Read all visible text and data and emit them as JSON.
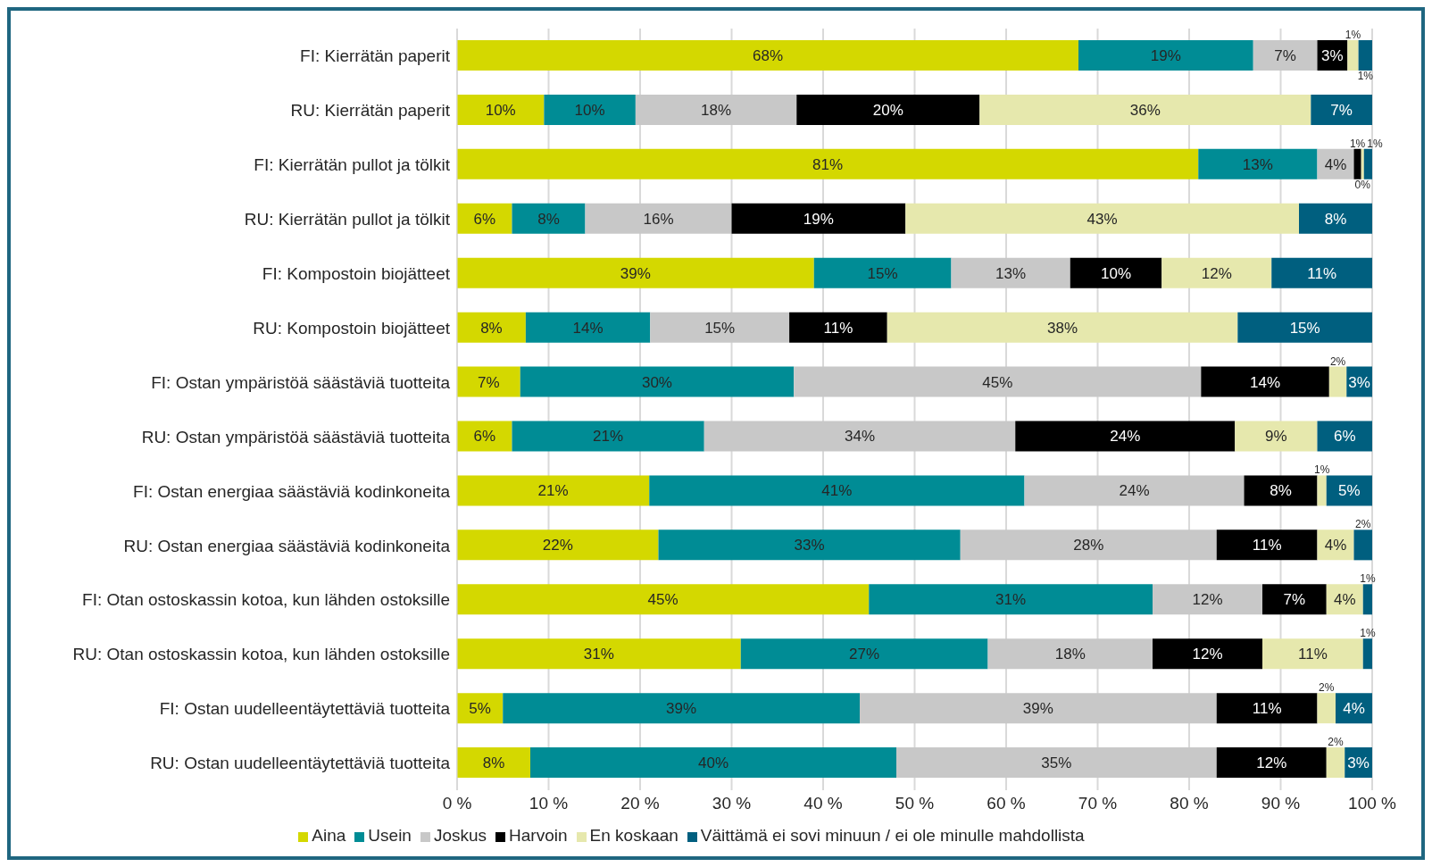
{
  "chart_data": {
    "type": "bar",
    "orientation": "horizontal",
    "stacked": true,
    "categories": [
      "FI: Kierrätän paperit",
      "RU: Kierrätän paperit",
      "FI: Kierrätän pullot ja tölkit",
      "RU: Kierrätän pullot ja tölkit",
      "FI: Kompostoin biojätteet",
      "RU: Kompostoin biojätteet",
      "FI: Ostan ympäristöä säästäviä tuotteita",
      "RU: Ostan ympäristöä säästäviä tuotteita",
      "FI: Ostan energiaa säästäviä kodinkoneita",
      "RU: Ostan energiaa säästäviä kodinkoneita",
      "FI: Otan ostoskassin kotoa, kun lähden ostoksille",
      "RU: Otan ostoskassin kotoa, kun lähden ostoksille",
      "FI: Ostan uudelleentäytettäviä tuotteita",
      "RU: Ostan uudelleentäytettäviä tuotteita"
    ],
    "series": [
      {
        "name": "Aina",
        "color": "#d4d800",
        "values": [
          67.9,
          9.5,
          81,
          6,
          39,
          7.5,
          6.9,
          6,
          21,
          22,
          45,
          31,
          5,
          8
        ],
        "value_labels": [
          "68%",
          "10%",
          "81%",
          "6%",
          "39%",
          "8%",
          "7%",
          "6%",
          "21%",
          "22%",
          "45%",
          "31%",
          "5%",
          "8%"
        ]
      },
      {
        "name": "Usein",
        "color": "#008c95",
        "values": [
          19.1,
          10,
          13,
          8,
          15,
          13.6,
          29.9,
          21,
          41,
          33,
          31,
          27,
          39,
          40
        ],
        "value_labels": [
          "19%",
          "10%",
          "13%",
          "8%",
          "15%",
          "14%",
          "30%",
          "21%",
          "41%",
          "33%",
          "31%",
          "27%",
          "39%",
          "40%"
        ]
      },
      {
        "name": "Joskus",
        "color": "#c8c8c8",
        "values": [
          7,
          17.6,
          4,
          16,
          13,
          15.2,
          44.5,
          34,
          24,
          28,
          12,
          18,
          39,
          35
        ],
        "value_labels": [
          "7%",
          "18%",
          "4%",
          "16%",
          "13%",
          "15%",
          "45%",
          "34%",
          "24%",
          "28%",
          "12%",
          "18%",
          "39%",
          "35%"
        ]
      },
      {
        "name": "Harvoin",
        "color": "#000000",
        "values": [
          3.3,
          20,
          0.8,
          19,
          10,
          10.7,
          14,
          24,
          8,
          11,
          7,
          12,
          11,
          12
        ],
        "value_labels": [
          "3%",
          "20%",
          "1%",
          "19%",
          "10%",
          "11%",
          "14%",
          "24%",
          "8%",
          "11%",
          "7%",
          "12%",
          "11%",
          "12%"
        ]
      },
      {
        "name": "En koskaan",
        "color": "#e6e8ad",
        "values": [
          1.2,
          36.2,
          0.3,
          43,
          12,
          38.3,
          1.9,
          9,
          1,
          4,
          4,
          11,
          2,
          2
        ],
        "value_labels": [
          "1%",
          "36%",
          "0%",
          "43%",
          "12%",
          "38%",
          "2%",
          "9%",
          "1%",
          "4%",
          "4%",
          "11%",
          "2%",
          "2%"
        ]
      },
      {
        "name": "Väittämä ei sovi minuun / ei ole minulle mahdollista",
        "color": "#005f7f",
        "values": [
          1.5,
          6.7,
          0.9,
          8,
          11,
          14.7,
          2.8,
          6,
          5,
          2,
          1,
          1,
          4,
          3
        ],
        "value_labels": [
          "1%",
          "7%",
          "1%",
          "8%",
          "11%",
          "15%",
          "3%",
          "6%",
          "5%",
          "2%",
          "1%",
          "1%",
          "4%",
          "3%"
        ]
      }
    ],
    "xlim": [
      0,
      100
    ],
    "xticks": [
      {
        "value": 0,
        "label": "0 %"
      },
      {
        "value": 10,
        "label": "10 %"
      },
      {
        "value": 20,
        "label": "20 %"
      },
      {
        "value": 30,
        "label": "30 %"
      },
      {
        "value": 40,
        "label": "40 %"
      },
      {
        "value": 50,
        "label": "50 %"
      },
      {
        "value": 60,
        "label": "60 %"
      },
      {
        "value": 70,
        "label": "70 %"
      },
      {
        "value": 80,
        "label": "80 %"
      },
      {
        "value": 90,
        "label": "90 %"
      },
      {
        "value": 100,
        "label": "100 %"
      }
    ],
    "grid": "x",
    "legend": "bottom"
  }
}
